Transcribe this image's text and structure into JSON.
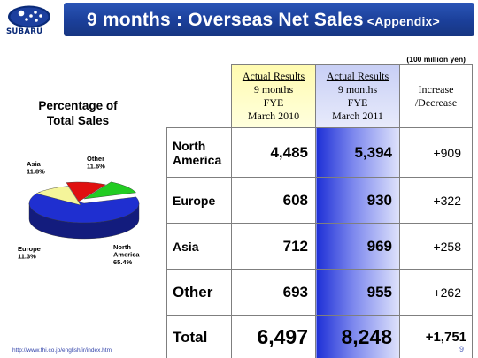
{
  "header": {
    "brand": "SUBARU",
    "title": "9 months : Overseas Net Sales",
    "subtitle": "<Appendix>"
  },
  "unit_note": "(100 million yen)",
  "pie": {
    "title_line1": "Percentage of",
    "title_line2": "Total Sales",
    "slices": [
      {
        "name": "North America",
        "label_line1": "North",
        "label_line2": "America",
        "pct_label": "65.4%",
        "value": 65.4,
        "color": "#1f2fd0"
      },
      {
        "name": "Europe",
        "label_line1": "Europe",
        "pct_label": "11.3%",
        "value": 11.3,
        "color": "#f5f59a"
      },
      {
        "name": "Asia",
        "label_line1": "Asia",
        "pct_label": "11.8%",
        "value": 11.8,
        "color": "#e01010"
      },
      {
        "name": "Other",
        "label_line1": "Other",
        "pct_label": "11.6%",
        "value": 11.6,
        "color": "#22cc22"
      }
    ]
  },
  "table": {
    "headers": {
      "col2010": {
        "line1": "Actual Results",
        "line2": "9 months",
        "line3": "FYE",
        "line4": "March 2010"
      },
      "col2011": {
        "line1": "Actual Results",
        "line2": "9 months",
        "line3": "FYE",
        "line4": "March 2011"
      },
      "inc": {
        "line1": "Increase",
        "line2": "/Decrease"
      }
    },
    "rows": [
      {
        "label_line1": "North",
        "label_line2": "America",
        "v2010": "4,485",
        "v2011": "5,394",
        "change": "+909"
      },
      {
        "label_line1": "Europe",
        "v2010": "608",
        "v2011": "930",
        "change": "+322"
      },
      {
        "label_line1": "Asia",
        "v2010": "712",
        "v2011": "969",
        "change": "+258"
      },
      {
        "label_line1": "Other",
        "v2010": "693",
        "v2011": "955",
        "change": "+262"
      },
      {
        "label_line1": "Total",
        "v2010": "6,497",
        "v2011": "8,248",
        "change": "+1,751"
      }
    ]
  },
  "footer": {
    "url": "http://www.fhi.co.jp/english/ir/index.html",
    "page": "9"
  }
}
